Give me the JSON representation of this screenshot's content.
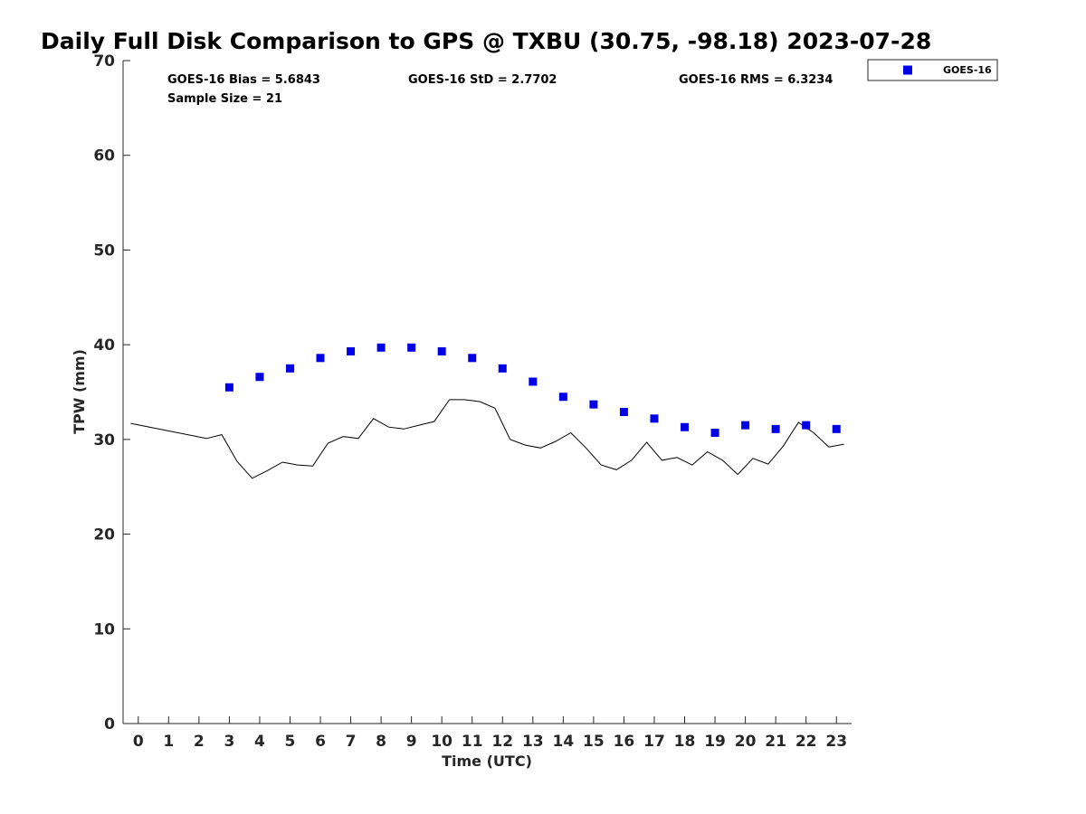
{
  "chart_data": {
    "type": "scatter",
    "title": "Daily Full Disk Comparison to GPS @ TXBU (30.75, -98.18) 2023-07-28",
    "xlabel": "Time (UTC)",
    "ylabel": "TPW (mm)",
    "xlim": [
      -0.5,
      23.5
    ],
    "ylim": [
      0,
      70
    ],
    "xticks": [
      0,
      1,
      2,
      3,
      4,
      5,
      6,
      7,
      8,
      9,
      10,
      11,
      12,
      13,
      14,
      15,
      16,
      17,
      18,
      19,
      20,
      21,
      22,
      23
    ],
    "yticks": [
      0,
      10,
      20,
      30,
      40,
      50,
      60,
      70
    ],
    "grid": false,
    "legend_position": "top-right, outside plot",
    "stats": {
      "bias": "GOES-16 Bias = 5.6843",
      "std": "GOES-16 StD = 2.7702",
      "rms": "GOES-16 RMS = 6.3234",
      "sample": "Sample Size = 21"
    },
    "series": [
      {
        "name": "GOES-16",
        "kind": "scatter",
        "marker": "square",
        "color": "#0000e6",
        "x": [
          3,
          4,
          5,
          6,
          7,
          8,
          9,
          10,
          11,
          12,
          13,
          14,
          15,
          16,
          17,
          18,
          19,
          20,
          21,
          22,
          23
        ],
        "y": [
          35.5,
          36.6,
          37.5,
          38.6,
          39.3,
          39.7,
          39.7,
          39.3,
          38.6,
          37.5,
          36.1,
          34.5,
          33.7,
          32.9,
          32.2,
          31.3,
          30.7,
          31.5,
          31.1,
          31.5,
          31.1
        ]
      },
      {
        "kind": "line",
        "color": "#000000",
        "x": [
          -0.25,
          2.25,
          2.75,
          3.25,
          3.75,
          4.25,
          4.75,
          5.25,
          5.75,
          6.25,
          6.75,
          7.25,
          7.75,
          8.25,
          8.75,
          9.25,
          9.75,
          10.25,
          10.75,
          11.25,
          11.75,
          12.25,
          12.75,
          13.25,
          13.75,
          14.25,
          14.75,
          15.25,
          15.75,
          16.25,
          16.75,
          17.25,
          17.75,
          18.25,
          18.75,
          19.25,
          19.75,
          20.25,
          20.75,
          21.25,
          21.75,
          22.25,
          22.75,
          23.25
        ],
        "y": [
          31.7,
          30.1,
          30.5,
          27.7,
          25.9,
          26.7,
          27.6,
          27.3,
          27.2,
          29.6,
          30.3,
          30.1,
          32.2,
          31.3,
          31.1,
          31.5,
          31.9,
          34.2,
          34.2,
          34.0,
          33.3,
          30.0,
          29.4,
          29.1,
          29.8,
          30.7,
          29.1,
          27.3,
          26.8,
          27.8,
          29.7,
          27.8,
          28.1,
          27.3,
          28.7,
          27.8,
          26.3,
          28.0,
          27.4,
          29.3,
          31.8,
          30.7,
          29.2,
          29.5
        ]
      }
    ]
  }
}
